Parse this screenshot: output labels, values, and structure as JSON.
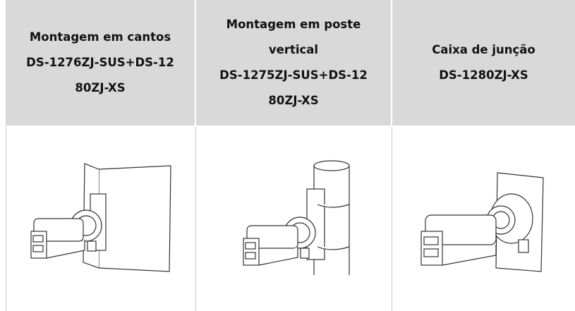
{
  "table": {
    "header": [
      {
        "lines": [
          "Montagem em cantos",
          "DS-1276ZJ-SUS+DS-12",
          "80ZJ-XS"
        ]
      },
      {
        "lines": [
          "Montagem em poste",
          "vertical",
          "DS-1275ZJ-SUS+DS-12",
          "80ZJ-XS"
        ]
      },
      {
        "lines": [
          "Caixa de junção",
          "DS-1280ZJ-XS"
        ]
      }
    ]
  }
}
